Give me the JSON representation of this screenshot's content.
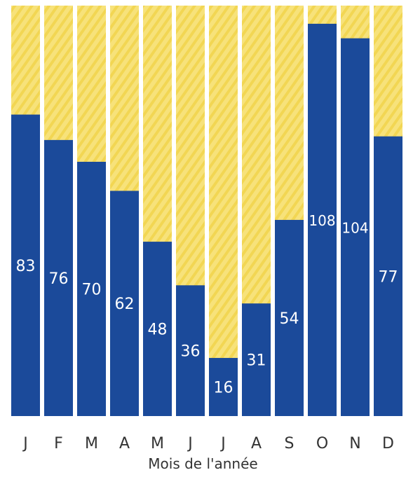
{
  "chart_data": {
    "type": "bar",
    "categories": [
      "J",
      "F",
      "M",
      "A",
      "M",
      "J",
      "J",
      "A",
      "S",
      "O",
      "N",
      "D"
    ],
    "values": [
      83,
      76,
      70,
      62,
      48,
      36,
      16,
      31,
      54,
      108,
      104,
      77
    ],
    "ylim": [
      0,
      113
    ],
    "xlabel": "Mois de l'année",
    "ylabel": "",
    "grid": false,
    "colors": {
      "bar": "#1b4a9a",
      "background_column": "#f7e27a",
      "background_stripe": "#f2d653",
      "value_label": "#ffffff",
      "tick_label": "#333333"
    }
  }
}
